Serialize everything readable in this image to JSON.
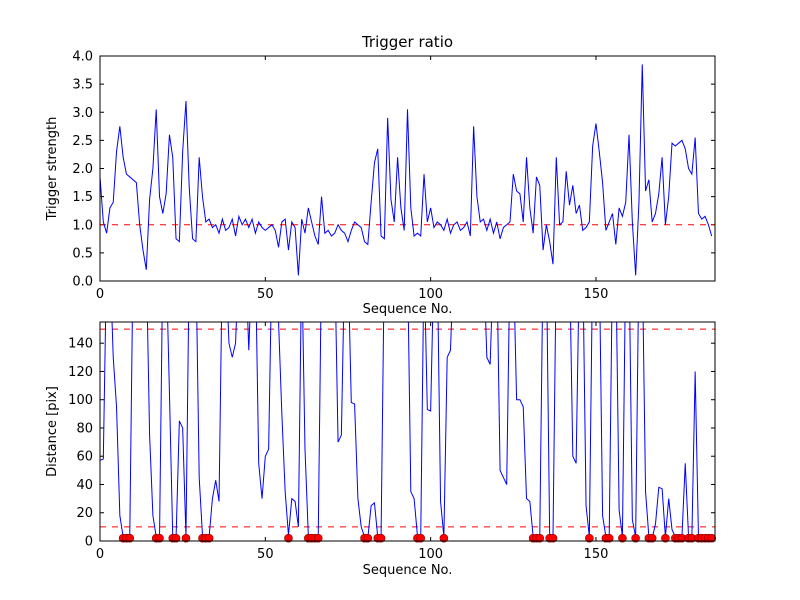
{
  "figure": {
    "background": "#ffffff",
    "line_color": "#0000ff",
    "threshold_color": "#ff0000",
    "dot_color": "#ff0000",
    "dot_edge_color": "#8b0000",
    "axis_color": "#000000"
  },
  "chart_data": [
    {
      "type": "line",
      "title": "Trigger ratio",
      "xlabel": "Sequence No.",
      "ylabel": "Trigger strength",
      "xlim": [
        0,
        186
      ],
      "ylim": [
        0,
        4
      ],
      "grid": false,
      "xticks": [
        0,
        50,
        100,
        150
      ],
      "xtick_labels": [
        "0",
        "50",
        "100",
        "150"
      ],
      "yticks": [
        0.0,
        0.5,
        1.0,
        1.5,
        2.0,
        2.5,
        3.0,
        3.5,
        4.0
      ],
      "ytick_labels": [
        "0.0",
        "0.5",
        "1.0",
        "1.5",
        "2.0",
        "2.5",
        "3.0",
        "3.5",
        "4.0"
      ],
      "thresholds": [
        1.0
      ],
      "x_start": 0,
      "x_step": 1,
      "y": [
        1.85,
        1.05,
        0.85,
        1.3,
        1.4,
        2.3,
        2.75,
        2.2,
        1.9,
        1.85,
        1.8,
        1.75,
        1.0,
        0.55,
        0.2,
        1.45,
        2.0,
        3.05,
        1.5,
        1.2,
        1.55,
        2.6,
        2.2,
        0.75,
        0.7,
        2.3,
        3.2,
        1.65,
        0.75,
        0.7,
        2.2,
        1.5,
        1.05,
        1.1,
        0.95,
        1.0,
        0.85,
        1.1,
        0.9,
        0.95,
        1.1,
        0.8,
        1.15,
        1.0,
        1.1,
        0.95,
        1.1,
        0.85,
        1.05,
        0.95,
        0.9,
        0.95,
        1.0,
        0.9,
        0.6,
        1.05,
        1.1,
        0.55,
        1.05,
        0.95,
        0.1,
        1.1,
        0.85,
        1.3,
        1.05,
        0.8,
        0.65,
        1.5,
        0.85,
        0.9,
        0.8,
        0.85,
        1.0,
        0.9,
        0.85,
        0.7,
        0.9,
        1.05,
        1.0,
        0.95,
        0.7,
        0.65,
        1.4,
        2.1,
        2.35,
        0.8,
        0.75,
        2.9,
        1.45,
        1.05,
        2.2,
        1.3,
        0.9,
        3.05,
        1.3,
        0.8,
        0.85,
        0.8,
        1.9,
        1.05,
        1.3,
        0.95,
        1.05,
        1.0,
        0.9,
        1.1,
        0.85,
        1.0,
        1.05,
        0.9,
        0.95,
        1.05,
        0.8,
        2.75,
        1.5,
        1.05,
        1.1,
        0.9,
        1.1,
        0.85,
        1.05,
        0.75,
        0.95,
        1.0,
        1.05,
        1.9,
        1.6,
        1.55,
        1.05,
        2.2,
        1.3,
        0.85,
        1.85,
        1.7,
        0.55,
        1.0,
        0.7,
        0.3,
        2.2,
        1.0,
        1.05,
        1.95,
        1.35,
        1.7,
        1.2,
        1.35,
        0.9,
        0.95,
        1.05,
        2.4,
        2.8,
        2.3,
        1.75,
        0.9,
        1.05,
        1.2,
        0.65,
        1.3,
        1.15,
        1.4,
        2.6,
        1.05,
        0.1,
        1.4,
        3.85,
        1.6,
        1.8,
        1.05,
        1.2,
        1.55,
        2.2,
        1.0,
        1.5,
        2.45,
        2.4,
        2.45,
        2.5,
        2.35,
        2.0,
        1.9,
        2.55,
        1.2,
        1.1,
        1.15,
        1.0,
        0.8
      ]
    },
    {
      "type": "line+scatter",
      "title": "",
      "xlabel": "Sequence No.",
      "ylabel": "Distance [pix]",
      "xlim": [
        0,
        186
      ],
      "ylim": [
        0,
        155
      ],
      "grid": false,
      "xticks": [
        0,
        50,
        100,
        150
      ],
      "xtick_labels": [
        "0",
        "50",
        "100",
        "150"
      ],
      "yticks": [
        0,
        20,
        40,
        60,
        80,
        100,
        120,
        140
      ],
      "ytick_labels": [
        "0",
        "20",
        "40",
        "60",
        "80",
        "100",
        "120",
        "140"
      ],
      "thresholds": [
        150,
        10
      ],
      "x_start": 0,
      "x_step": 1,
      "y": [
        57,
        58,
        200,
        200,
        130,
        95,
        18,
        3,
        2,
        3,
        200,
        200,
        200,
        200,
        200,
        75,
        18,
        3,
        2,
        200,
        200,
        105,
        3,
        2,
        85,
        80,
        3,
        200,
        200,
        200,
        45,
        4,
        3,
        3,
        30,
        43,
        28,
        200,
        200,
        140,
        130,
        140,
        200,
        200,
        200,
        135,
        200,
        200,
        55,
        30,
        60,
        65,
        200,
        200,
        155,
        90,
        35,
        4,
        30,
        28,
        10,
        200,
        65,
        4,
        3,
        3,
        3,
        200,
        200,
        200,
        200,
        200,
        70,
        75,
        200,
        200,
        98,
        97,
        30,
        10,
        3,
        2,
        25,
        27,
        3,
        2,
        200,
        200,
        200,
        200,
        155,
        200,
        200,
        200,
        35,
        30,
        4,
        3,
        200,
        93,
        92,
        200,
        200,
        28,
        3,
        130,
        135,
        200,
        200,
        200,
        200,
        200,
        200,
        200,
        165,
        160,
        200,
        130,
        125,
        200,
        200,
        50,
        45,
        40,
        200,
        200,
        100,
        100,
        95,
        30,
        28,
        3,
        2,
        3,
        200,
        200,
        3,
        2,
        200,
        200,
        200,
        200,
        200,
        60,
        55,
        200,
        200,
        25,
        3,
        200,
        200,
        200,
        18,
        3,
        2,
        200,
        200,
        22,
        3,
        200,
        200,
        15,
        3,
        200,
        200,
        35,
        3,
        2,
        12,
        38,
        37,
        3,
        30,
        8,
        3,
        2,
        3,
        55,
        3,
        2,
        120,
        3,
        2,
        3,
        2,
        3
      ],
      "dots_x": [
        7,
        8,
        9,
        17,
        18,
        22,
        23,
        26,
        31,
        32,
        33,
        57,
        63,
        64,
        65,
        66,
        80,
        81,
        84,
        85,
        96,
        97,
        104,
        131,
        132,
        133,
        136,
        137,
        148,
        153,
        154,
        158,
        162,
        166,
        167,
        171,
        174,
        175,
        176,
        178,
        179,
        181,
        182,
        183,
        184,
        185
      ],
      "dots_y": 2
    }
  ]
}
